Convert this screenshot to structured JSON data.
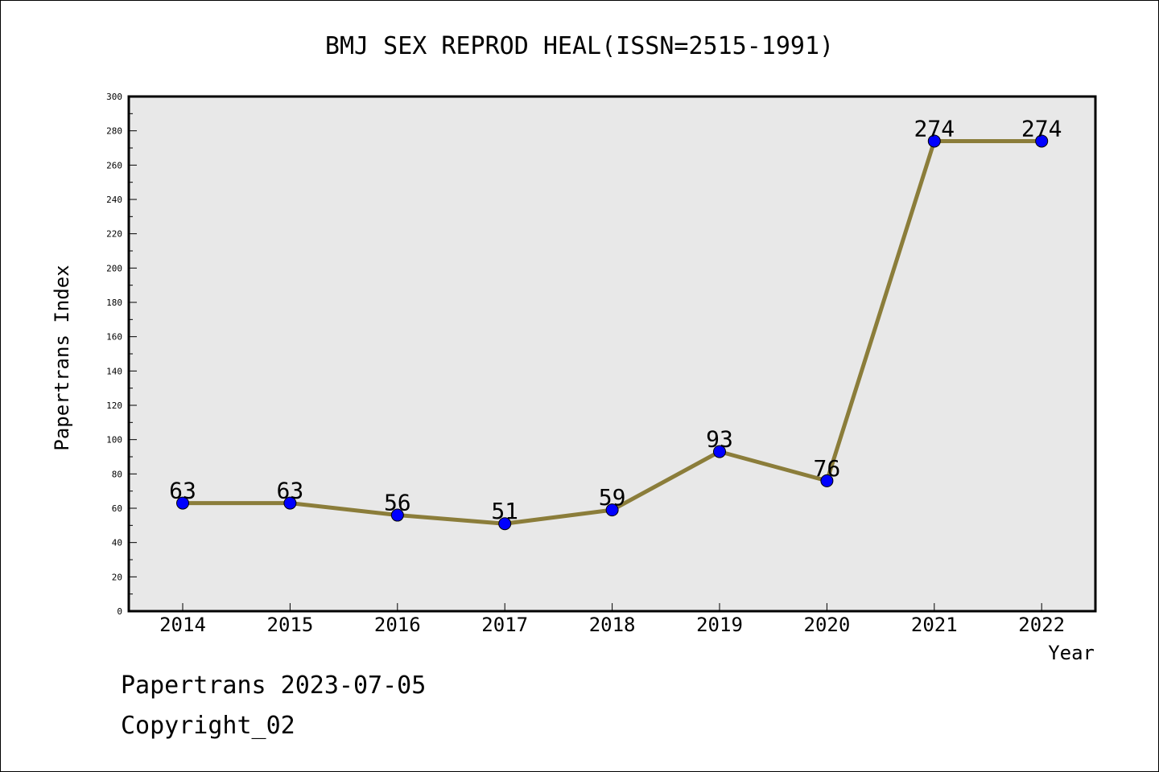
{
  "chart_data": {
    "type": "line",
    "title": "BMJ SEX REPROD HEAL(ISSN=2515-1991)",
    "xlabel": "Year",
    "ylabel": "Papertrans Index",
    "x": [
      "2014",
      "2015",
      "2016",
      "2017",
      "2018",
      "2019",
      "2020",
      "2021",
      "2022"
    ],
    "series": [
      {
        "values": [
          63,
          63,
          56,
          51,
          59,
          93,
          76,
          274,
          274
        ]
      }
    ],
    "data_labels": [
      "63",
      "63",
      "56",
      "51",
      "59",
      "93",
      "76",
      "274",
      "274"
    ],
    "ylim": [
      0,
      300
    ],
    "yticks": [
      0,
      20,
      40,
      60,
      80,
      100,
      120,
      140,
      160,
      180,
      200,
      220,
      240,
      260,
      280,
      300
    ],
    "grid": false,
    "colors": {
      "line": "#8B7D3A",
      "marker": "#0000FF",
      "plot_bg": "#E8E8E8"
    }
  },
  "footer": {
    "line1": "Papertrans 2023-07-05",
    "line2": "Copyright_02"
  }
}
